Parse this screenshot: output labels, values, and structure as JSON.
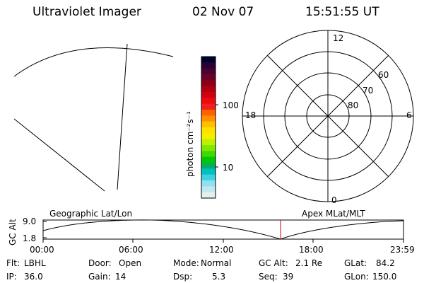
{
  "header": {
    "title": "Ultraviolet Imager",
    "date": "02 Nov 07",
    "time": "15:51:55 UT"
  },
  "colorbar": {
    "unit_label": "photon cm⁻²s⁻¹",
    "ticks": [
      "100",
      "10"
    ],
    "colors": [
      "#000030",
      "#2a0034",
      "#4a0030",
      "#6a0028",
      "#8b0018",
      "#b00010",
      "#d00010",
      "#ec0a10",
      "#f02020",
      "#ff6000",
      "#ff9000",
      "#ffc000",
      "#ffe000",
      "#f0f000",
      "#c0f000",
      "#80e800",
      "#40d800",
      "#00c800",
      "#00b060",
      "#00c0c0",
      "#40d0e0",
      "#90e0f0",
      "#c0e8f0",
      "#e6eef2"
    ]
  },
  "polar": {
    "mlt_labels": {
      "top": "12",
      "right": "6",
      "left": "18",
      "bottom": "0"
    },
    "lat_labels": [
      "60",
      "70",
      "80"
    ]
  },
  "timeline": {
    "geo_label": "Geographic Lat/Lon",
    "apex_label": "Apex MLat/MLT",
    "y_axis_label": "GC Alt",
    "y_ticks": [
      "9.0",
      "1.8"
    ],
    "x_ticks": [
      "00:00",
      "06:00",
      "12:00",
      "18:00",
      "23:59"
    ],
    "marker_color": "#cc0000"
  },
  "info": {
    "flt_label": "Flt:",
    "flt_value": "LBHL",
    "ip_label": "IP:",
    "ip_value": "36.0",
    "door_label": "Door:",
    "door_value": "Open",
    "gain_label": "Gain:",
    "gain_value": "14",
    "mode_label": "Mode:",
    "mode_value": "Normal",
    "dsp_label": "Dsp:",
    "dsp_value": "5.3",
    "gcalt_label": "GC Alt:",
    "gcalt_value": "2.1 Re",
    "seq_label": "Seq:",
    "seq_value": "39",
    "glat_label": "GLat:",
    "glat_value": "84.2",
    "glon_label": "GLon:",
    "glon_value": "150.0"
  }
}
